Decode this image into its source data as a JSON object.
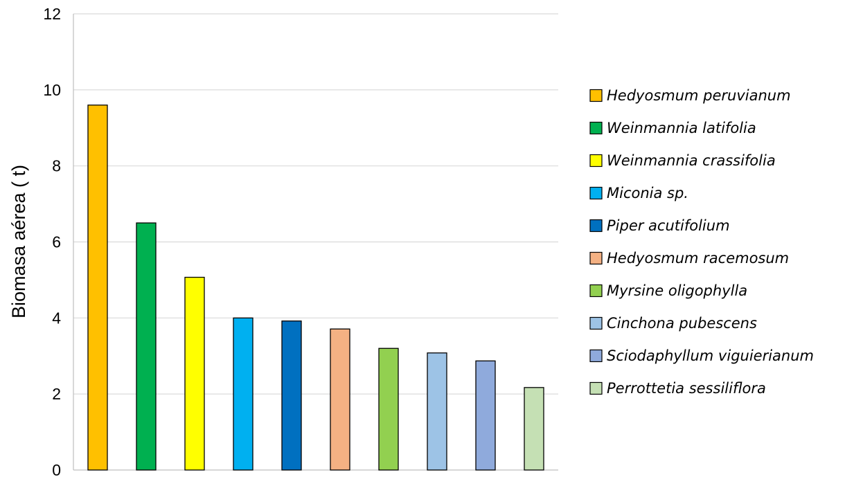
{
  "chart_data": {
    "type": "bar",
    "ylabel": "Biomasa aérea ( t)",
    "xlabel": "",
    "title": "",
    "ylim": [
      0,
      12
    ],
    "yticks": [
      0,
      2,
      4,
      6,
      8,
      10,
      12
    ],
    "grid": true,
    "legend_position": "right",
    "categories": [
      "Hedyosmum peruvianum",
      "Weinmannia latifolia",
      "Weinmannia crassifolia",
      "Miconia sp.",
      "Piper acutifolium",
      "Hedyosmum racemosum",
      "Myrsine oligophylla",
      "Cinchona pubescens",
      "Sciodaphyllum viguierianum",
      "Perrottetia sessiliflora"
    ],
    "values": [
      9.6,
      6.5,
      5.07,
      4.0,
      3.92,
      3.71,
      3.2,
      3.08,
      2.87,
      2.17
    ],
    "colors": [
      "#FFC000",
      "#00B050",
      "#FFFF00",
      "#00B0F0",
      "#0070C0",
      "#F4B183",
      "#92D050",
      "#9DC3E6",
      "#8FAADC",
      "#C5E0B4"
    ]
  }
}
